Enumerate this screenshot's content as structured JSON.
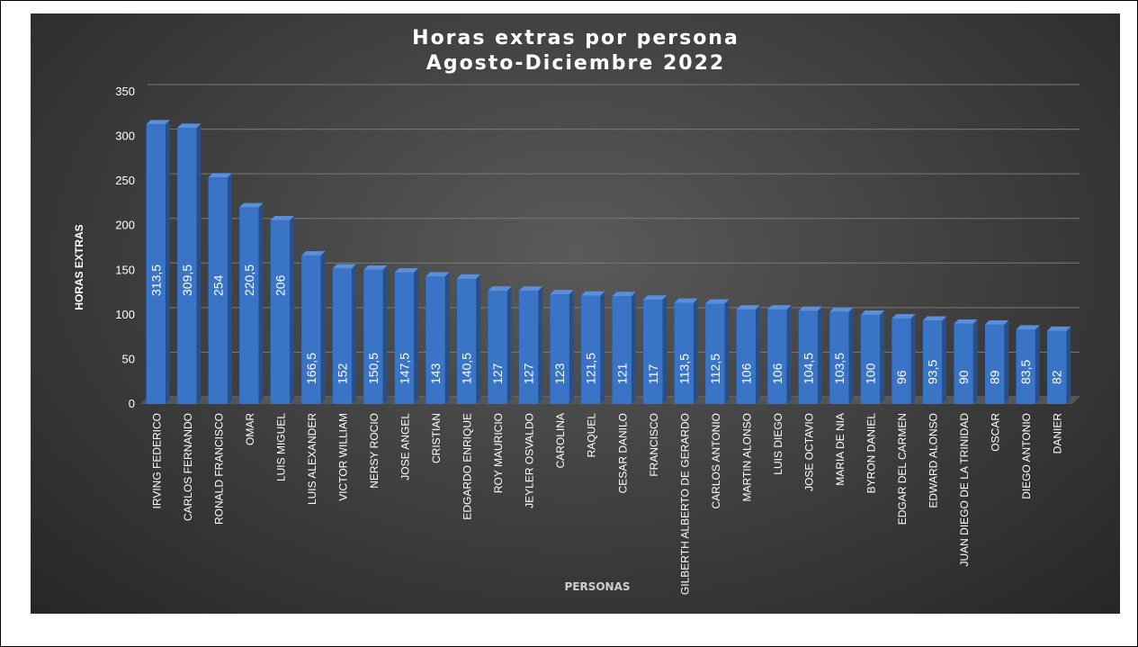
{
  "chart_data": {
    "type": "bar",
    "title": "Horas extras por persona",
    "subtitle": "Agosto-Diciembre 2022",
    "xlabel": "PERSONAS",
    "ylabel": "HORAS EXTRAS",
    "ylim": [
      0,
      350
    ],
    "yticks": [
      0,
      50,
      100,
      150,
      200,
      250,
      300,
      350
    ],
    "grid": true,
    "legend": "none",
    "colors": {
      "bar": "#3a74c7",
      "bar_top": "#5b8fdb",
      "bar_side": "#24508f",
      "background": "#3d3d3d",
      "grid": "#7a7a7a",
      "text": "#ffffff"
    },
    "categories": [
      "IRVING FEDERICO",
      "CARLOS FERNANDO",
      "RONALD FRANCISCO",
      "OMAR",
      "LUIS MIGUEL",
      "LUIS ALEXANDER",
      "VICTOR WILLIAM",
      "NERSY ROCIO",
      "JOSE ANGEL",
      "CRISTIAN",
      "EDGARDO ENRIQUE",
      "ROY MAURICIO",
      "JEYLER OSVALDO",
      "CAROLINA",
      "RAQUEL",
      "CESAR DANILO",
      "FRANCISCO",
      "GILBERTH ALBERTO DE GERARDO",
      "CARLOS ANTONIO",
      "MARTIN ALONSO",
      "LUIS DIEGO",
      "JOSE OCTAVIO",
      "MARIA DE NIA",
      "BYRON DANIEL",
      "EDGAR DEL CARMEN",
      "EDWARD ALONSO",
      "JUAN DIEGO DE LA TRINIDAD",
      "OSCAR",
      "DIEGO ANTONIO",
      "DANIER"
    ],
    "values": [
      313.5,
      309.5,
      254,
      220.5,
      206,
      166.5,
      152,
      150.5,
      147.5,
      143,
      140.5,
      127,
      127,
      123,
      121.5,
      121,
      117,
      113.5,
      112.5,
      106,
      106,
      104.5,
      103.5,
      100,
      96,
      93.5,
      90,
      89,
      83.5,
      82
    ],
    "data_labels": [
      "313,5",
      "309,5",
      "254",
      "220,5",
      "206",
      "166,5",
      "152",
      "150,5",
      "147,5",
      "143",
      "140,5",
      "127",
      "127",
      "123",
      "121,5",
      "121",
      "117",
      "113,5",
      "112,5",
      "106",
      "106",
      "104,5",
      "103,5",
      "100",
      "96",
      "93,5",
      "90",
      "89",
      "83,5",
      "82"
    ]
  }
}
